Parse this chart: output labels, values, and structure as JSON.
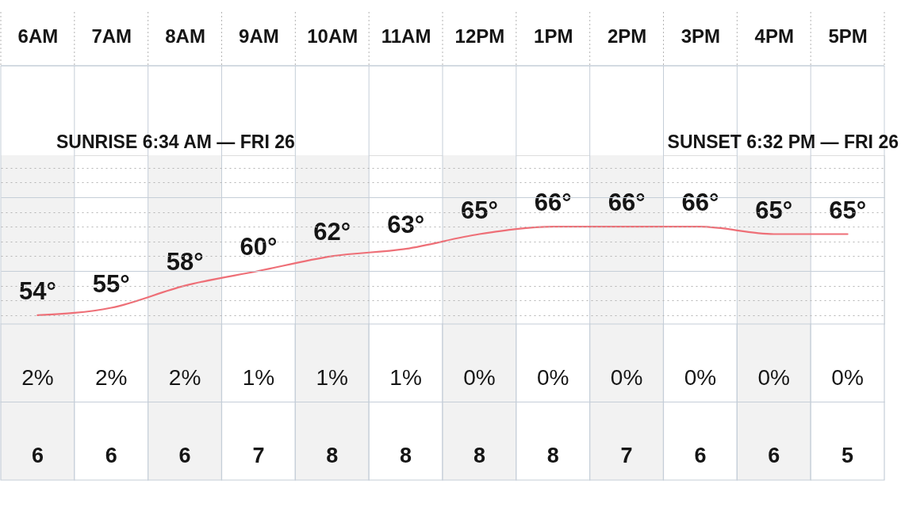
{
  "chart_data": [
    {
      "type": "line",
      "categories": [
        "6AM",
        "7AM",
        "8AM",
        "9AM",
        "10AM",
        "11AM",
        "12PM",
        "1PM",
        "2PM",
        "3PM",
        "4PM",
        "5PM"
      ],
      "series": [
        {
          "color": "#ee6f77",
          "values": [
            54,
            55,
            58,
            60,
            62,
            63,
            65,
            66,
            66,
            66,
            65,
            65
          ],
          "value_labels": [
            "54°",
            "55°",
            "58°",
            "60°",
            "62°",
            "63°",
            "65°",
            "66°",
            "66°",
            "66°",
            "65°",
            "65°"
          ]
        }
      ],
      "ylim": [
        52.8,
        75.7
      ],
      "tick_labels": "x",
      "grid": true,
      "bands": [
        {
          "axis": "x",
          "from": "6AM",
          "to": "6AM",
          "color": "#f2f2f2"
        },
        {
          "axis": "x",
          "from": "8AM",
          "to": "8AM",
          "color": "#f2f2f2"
        },
        {
          "axis": "x",
          "from": "10AM",
          "to": "10AM",
          "color": "#f2f2f2"
        },
        {
          "axis": "x",
          "from": "12PM",
          "to": "12PM",
          "color": "#f2f2f2"
        },
        {
          "axis": "x",
          "from": "2PM",
          "to": "2PM",
          "color": "#f2f2f2"
        },
        {
          "axis": "x",
          "from": "4PM",
          "to": "4PM",
          "color": "#f2f2f2"
        }
      ],
      "annotations": [
        "SUNRISE 6:34 AM — FRI 26",
        "SUNSET 6:32 PM — FRI 26"
      ]
    },
    {
      "type": "other",
      "annotations": [
        "2%",
        "2%",
        "2%",
        "1%",
        "1%",
        "1%",
        "0%",
        "0%",
        "0%",
        "0%",
        "0%",
        "0%",
        "6",
        "6",
        "6",
        "7",
        "8",
        "8",
        "8",
        "8",
        "7",
        "6",
        "6",
        "5"
      ]
    }
  ]
}
